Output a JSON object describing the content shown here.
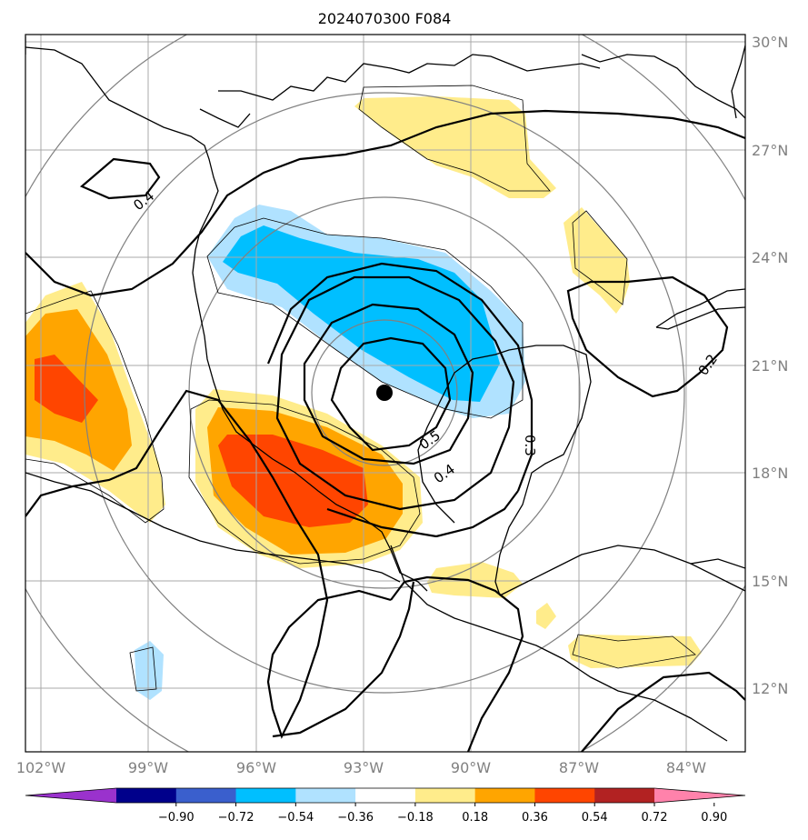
{
  "title": "2024070300 F084",
  "lon_ticks": [
    "102°W",
    "99°W",
    "96°W",
    "93°W",
    "90°W",
    "87°W",
    "84°W"
  ],
  "lat_ticks": [
    "30°N",
    "27°N",
    "24°N",
    "21°N",
    "18°N",
    "15°N",
    "12°N"
  ],
  "contour_labels": [
    "0.4",
    "0.2",
    "0.5",
    "0.4",
    "0.3"
  ],
  "colorbar": {
    "labels": [
      "−0.90",
      "−0.72",
      "−0.54",
      "−0.36",
      "−0.18",
      "0.18",
      "0.36",
      "0.54",
      "0.72",
      "0.90"
    ],
    "colors": [
      "#9a32cd",
      "#00008b",
      "#3a5fcd",
      "#00bfff",
      "#b0e2ff",
      "#ffffff",
      "#ffec8b",
      "#ffa500",
      "#ff4500",
      "#b22222",
      "#ff82ab"
    ]
  },
  "storm_center": {
    "lon": -92.4,
    "lat": 20.2
  },
  "colors": {
    "positive_light": "#ffec8b",
    "positive_mid": "#ffa500",
    "positive_strong": "#ff4500",
    "negative_light": "#b0e2ff",
    "negative_mid": "#00bfff"
  }
}
